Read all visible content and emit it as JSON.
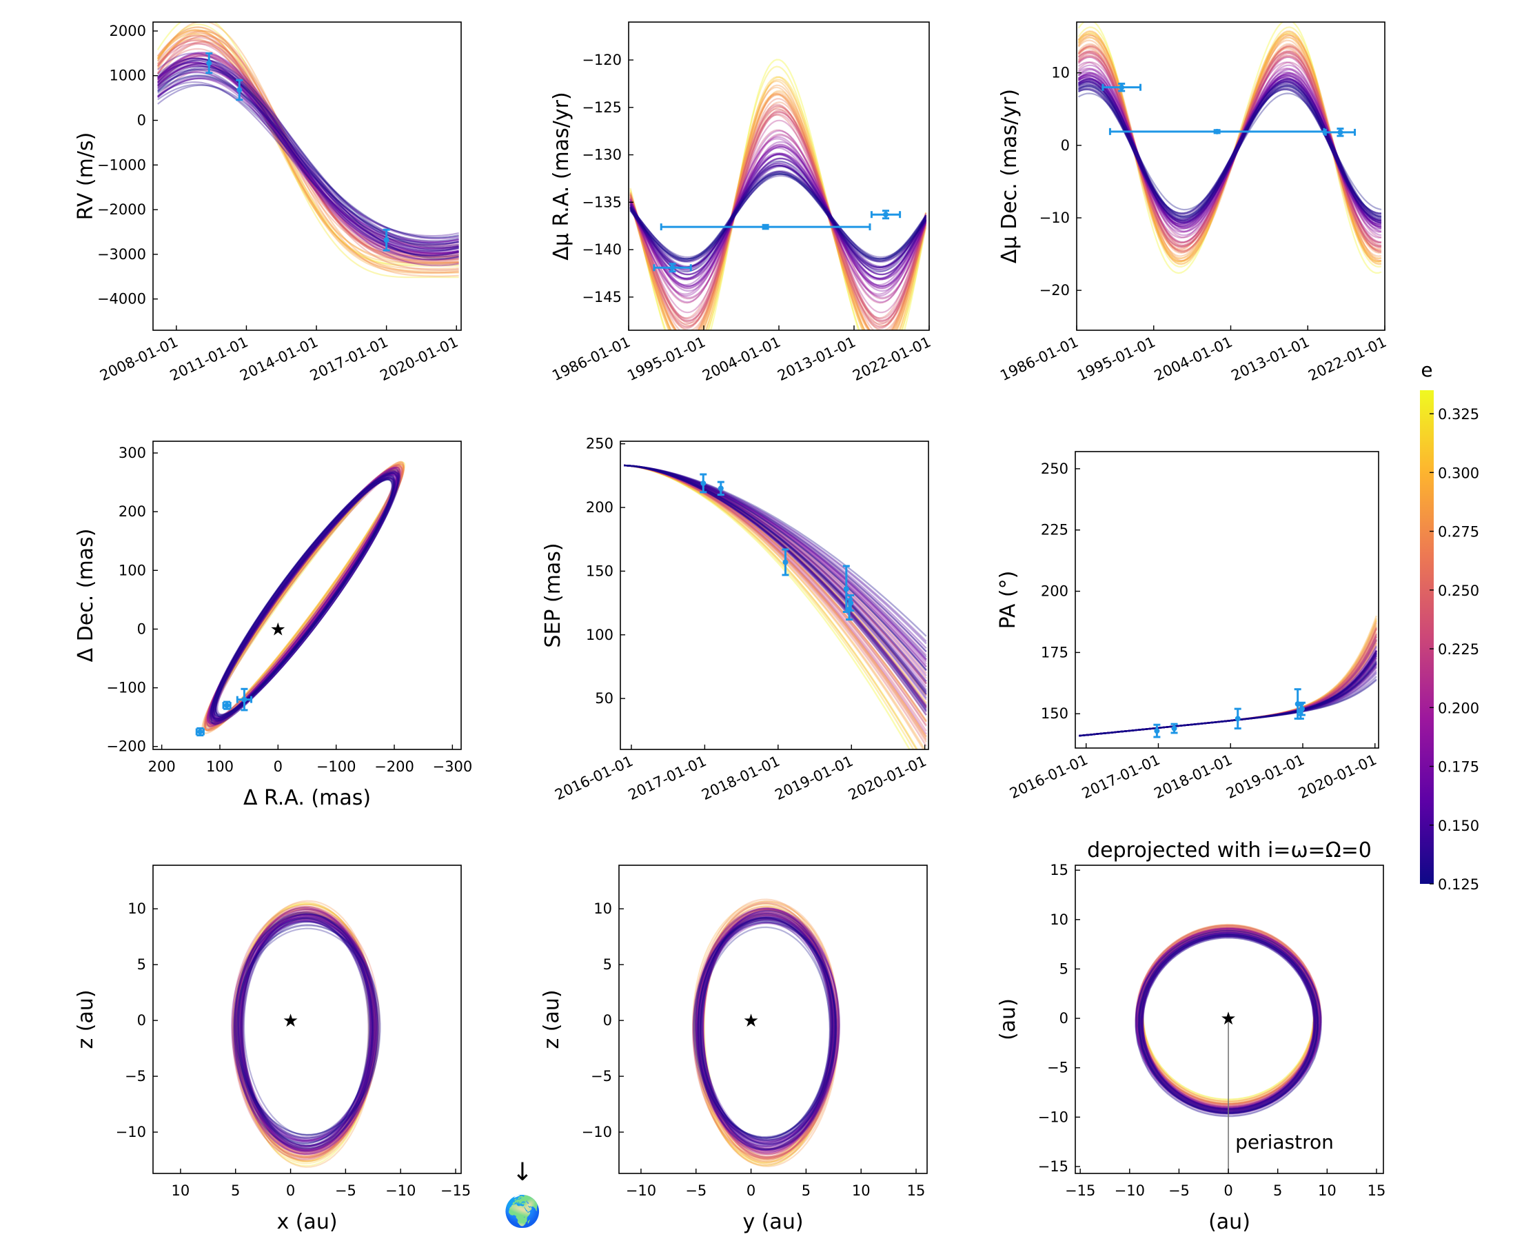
{
  "figure": {
    "colorbar": {
      "label": "e",
      "range": [
        0.125,
        0.335
      ],
      "ticks": [
        "0.125",
        "0.150",
        "0.175",
        "0.200",
        "0.225",
        "0.250",
        "0.275",
        "0.300",
        "0.325"
      ],
      "colors": [
        "#0d0887",
        "#5c01a6",
        "#9c179e",
        "#cc4778",
        "#ed7953",
        "#fdb42f",
        "#f0f921"
      ]
    },
    "data_color": "#1e96e6",
    "earth_glyph": "🌍",
    "earth_arrow": "↓"
  },
  "chart_data": [
    {
      "id": "rv",
      "type": "line",
      "xlabel": "",
      "ylabel": "RV (m/s)",
      "x_ticks": [
        "2008-01-01",
        "2011-01-01",
        "2014-01-01",
        "2017-01-01",
        "2020-01-01"
      ],
      "y_ticks": [
        "−4000",
        "−3000",
        "−2000",
        "−1000",
        "0",
        "1000",
        "2000"
      ],
      "xlim": [
        2007.0,
        2020.2
      ],
      "ylim": [
        -4700,
        2200
      ],
      "observations": [
        {
          "x": 2009.4,
          "y": 1280,
          "yerr": 220
        },
        {
          "x": 2010.7,
          "y": 680,
          "yerr": 220
        },
        {
          "x": 2017.0,
          "y": -2680,
          "yerr": 230
        }
      ]
    },
    {
      "id": "pmra",
      "type": "line",
      "xlabel": "",
      "ylabel": "Δμ R.A. (mas/yr)",
      "x_ticks": [
        "1986-01-01",
        "1995-01-01",
        "2004-01-01",
        "2013-01-01",
        "2022-01-01"
      ],
      "y_ticks": [
        "−145",
        "−140",
        "−135",
        "−130",
        "−125",
        "−120"
      ],
      "xlim": [
        1986.0,
        2022.0
      ],
      "ylim": [
        -148.5,
        -116
      ],
      "observations": [
        {
          "x": 1991.25,
          "y": -141.9,
          "xerr": 2.2,
          "yerr": 0.4
        },
        {
          "x": 2002.4,
          "y": -137.6,
          "xerr": 12.5,
          "yerr": 0.2
        },
        {
          "x": 2016.8,
          "y": -136.3,
          "xerr": 1.7,
          "yerr": 0.4
        }
      ]
    },
    {
      "id": "pmdec",
      "type": "line",
      "xlabel": "",
      "ylabel": "Δμ Dec. (mas/yr)",
      "x_ticks": [
        "1986-01-01",
        "1995-01-01",
        "2004-01-01",
        "2013-01-01",
        "2022-01-01"
      ],
      "y_ticks": [
        "−20",
        "−10",
        "0",
        "10"
      ],
      "xlim": [
        1986.0,
        2022.0
      ],
      "ylim": [
        -25.5,
        17
      ],
      "observations": [
        {
          "x": 1991.25,
          "y": 8.0,
          "xerr": 2.2,
          "yerr": 0.5
        },
        {
          "x": 2002.4,
          "y": 1.9,
          "xerr": 12.5,
          "yerr": 0.2
        },
        {
          "x": 2016.8,
          "y": 1.8,
          "xerr": 1.7,
          "yerr": 0.5
        }
      ]
    },
    {
      "id": "astrom",
      "type": "scatter",
      "xlabel": "Δ R.A. (mas)",
      "ylabel": "Δ Dec. (mas)",
      "x_ticks": [
        "200",
        "100",
        "0",
        "−100",
        "−200",
        "−300"
      ],
      "y_ticks": [
        "−200",
        "−100",
        "0",
        "100",
        "200",
        "300"
      ],
      "xlim": [
        215,
        -315
      ],
      "ylim": [
        -205,
        320
      ],
      "star_glyph": "★",
      "observations": [
        {
          "x": 134,
          "y": -175,
          "xerr": 6,
          "yerr": 6
        },
        {
          "x": 88,
          "y": -130,
          "xerr": 6,
          "yerr": 6
        },
        {
          "x": 58,
          "y": -120,
          "xerr": 12,
          "yerr": 18
        }
      ]
    },
    {
      "id": "sep",
      "type": "line",
      "xlabel": "",
      "ylabel": "SEP (mas)",
      "x_ticks": [
        "2016-01-01",
        "2017-01-01",
        "2018-01-01",
        "2019-01-01",
        "2020-01-01"
      ],
      "y_ticks": [
        "50",
        "100",
        "150",
        "200",
        "250"
      ],
      "xlim": [
        2015.85,
        2020.05
      ],
      "ylim": [
        10,
        252
      ],
      "observations": [
        {
          "x": 2016.98,
          "y": 219,
          "yerr": 7
        },
        {
          "x": 2017.22,
          "y": 215,
          "yerr": 5
        },
        {
          "x": 2018.1,
          "y": 157,
          "yerr": 10
        },
        {
          "x": 2018.93,
          "y": 136,
          "yerr": 18
        },
        {
          "x": 2018.97,
          "y": 120,
          "yerr": 8
        },
        {
          "x": 2018.99,
          "y": 125,
          "yerr": 6
        }
      ]
    },
    {
      "id": "pa",
      "type": "line",
      "xlabel": "",
      "ylabel": "PA (°)",
      "x_ticks": [
        "2016-01-01",
        "2017-01-01",
        "2018-01-01",
        "2019-01-01",
        "2020-01-01"
      ],
      "y_ticks": [
        "150",
        "175",
        "200",
        "225",
        "250"
      ],
      "xlim": [
        2015.85,
        2020.05
      ],
      "ylim": [
        136,
        257
      ],
      "observations": [
        {
          "x": 2016.98,
          "y": 143,
          "yerr": 2.5
        },
        {
          "x": 2017.22,
          "y": 144,
          "yerr": 1.8
        },
        {
          "x": 2018.1,
          "y": 148,
          "yerr": 4
        },
        {
          "x": 2018.93,
          "y": 154,
          "yerr": 6
        },
        {
          "x": 2018.97,
          "y": 151,
          "yerr": 3
        },
        {
          "x": 2018.99,
          "y": 152,
          "yerr": 2.5
        }
      ]
    },
    {
      "id": "xz",
      "type": "line",
      "xlabel": "x (au)",
      "ylabel": "z (au)",
      "x_ticks": [
        "10",
        "5",
        "0",
        "−5",
        "−10",
        "−15"
      ],
      "y_ticks": [
        "−10",
        "−5",
        "0",
        "5",
        "10"
      ],
      "xlim": [
        12.5,
        -15.5
      ],
      "ylim": [
        -13.7,
        13.9
      ],
      "star_glyph": "★"
    },
    {
      "id": "yz",
      "type": "line",
      "xlabel": "y (au)",
      "ylabel": "z (au)",
      "x_ticks": [
        "−10",
        "−5",
        "0",
        "5",
        "10",
        "15"
      ],
      "y_ticks": [
        "−10",
        "−5",
        "0",
        "5",
        "10"
      ],
      "xlim": [
        -12.0,
        16.0
      ],
      "ylim": [
        -13.7,
        13.9
      ],
      "star_glyph": "★"
    },
    {
      "id": "deproj",
      "type": "line",
      "title": "deprojected with i=ω=Ω=0",
      "xlabel": "(au)",
      "ylabel": "(au)",
      "x_ticks": [
        "−15",
        "−10",
        "−5",
        "0",
        "5",
        "10",
        "15"
      ],
      "y_ticks": [
        "−15",
        "−10",
        "−5",
        "0",
        "5",
        "10",
        "15"
      ],
      "xlim": [
        -15.5,
        15.7
      ],
      "ylim": [
        -15.7,
        15.5
      ],
      "star_glyph": "★",
      "annotation": "periastron"
    }
  ]
}
